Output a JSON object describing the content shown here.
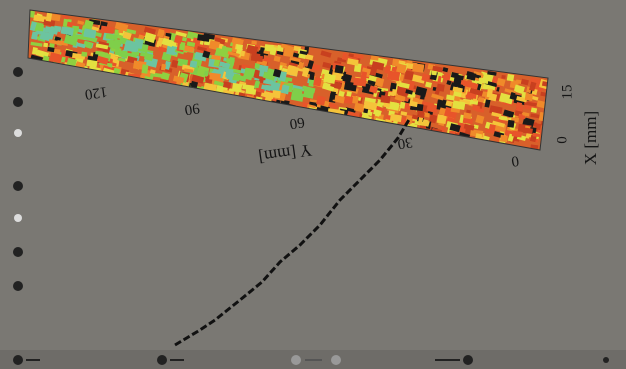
{
  "axes": {
    "x_label": "X [mm]",
    "x_ticks": [
      "0",
      "15"
    ],
    "y_label": "Y [mm]",
    "y_ticks": [
      "0",
      "30",
      "60",
      "90",
      "120"
    ]
  }
}
